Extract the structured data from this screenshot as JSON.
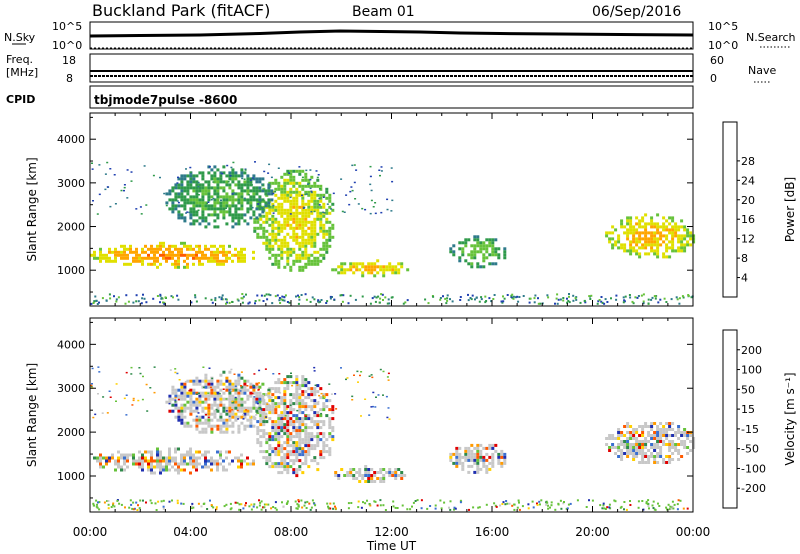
{
  "header": {
    "title": "Buckland Park (fitACF)",
    "beam": "Beam 01",
    "date": "06/Sep/2016"
  },
  "summary": {
    "nsky_label": "N.Sky",
    "nsky_ticks": [
      "10^5",
      "10^0"
    ],
    "nsearch_label": "N.Search",
    "nsearch_ticks": [
      "10^5",
      "10^0"
    ],
    "freq_label_line1": "Freq.",
    "freq_label_line2": "[MHz]",
    "freq_ticks": [
      "18",
      "8"
    ],
    "nave_label": "Nave",
    "nave_ticks": [
      "60",
      "0"
    ],
    "cpid_label": "CPID",
    "cpid_text": "tbjmode7pulse  -8600"
  },
  "chart_data": [
    {
      "type": "heatmap",
      "name": "power",
      "ylabel": "Slant Range [km]",
      "yticks": [
        1000,
        2000,
        3000,
        4000
      ],
      "ylim": [
        180,
        4600
      ],
      "xlim": [
        0,
        24
      ],
      "colorbar": {
        "label": "Power [dB]",
        "ticks": [
          "4",
          "8",
          "12",
          "16",
          "20",
          "24",
          "28"
        ],
        "colors": [
          "#0000e0",
          "#1f3fb0",
          "#2e7a8a",
          "#2f9a4a",
          "#66c23a",
          "#e0e000",
          "#ffa500",
          "#ff5a00",
          "#e00000"
        ]
      },
      "features": [
        {
          "x": [
            0.0,
            6.5
          ],
          "y": [
            1100,
            1650
          ],
          "level": 22
        },
        {
          "x": [
            6.5,
            9.7
          ],
          "y": [
            1000,
            3300
          ],
          "level": 18
        },
        {
          "x": [
            3.0,
            7.2
          ],
          "y": [
            2000,
            3400
          ],
          "level": 12
        },
        {
          "x": [
            9.6,
            12.7
          ],
          "y": [
            900,
            1250
          ],
          "level": 20
        },
        {
          "x": [
            14.3,
            16.5
          ],
          "y": [
            1100,
            1800
          ],
          "level": 13
        },
        {
          "x": [
            20.5,
            24.0
          ],
          "y": [
            1300,
            2300
          ],
          "level": 20
        }
      ]
    },
    {
      "type": "heatmap",
      "name": "velocity",
      "ylabel": "Slant Range [km]",
      "yticks": [
        1000,
        2000,
        3000,
        4000
      ],
      "ylim": [
        180,
        4600
      ],
      "xlim": [
        0,
        24
      ],
      "xticks": [
        "00:00",
        "04:00",
        "08:00",
        "12:00",
        "16:00",
        "20:00",
        "00:00"
      ],
      "xlabel": "Time UT",
      "colorbar": {
        "label": "Velocity [m s⁻¹]",
        "ticks": [
          "200",
          "100",
          "50",
          "15",
          "-15",
          "-50",
          "-100",
          "-200"
        ],
        "colors": [
          "#1f2fb0",
          "#3a6fd0",
          "#2f8a4a",
          "#66c23a",
          "#c8c8c8",
          "#ffd000",
          "#ff9a00",
          "#ff5a00",
          "#e00000"
        ]
      },
      "features": [
        {
          "x": [
            0.0,
            6.5
          ],
          "y": [
            1100,
            1650
          ],
          "level": 0
        },
        {
          "x": [
            6.5,
            9.7
          ],
          "y": [
            1000,
            3300
          ],
          "level": 0
        },
        {
          "x": [
            3.0,
            7.2
          ],
          "y": [
            2000,
            3400
          ],
          "level": 0
        },
        {
          "x": [
            9.6,
            12.7
          ],
          "y": [
            900,
            1250
          ],
          "level": 0
        },
        {
          "x": [
            14.3,
            16.5
          ],
          "y": [
            1100,
            1800
          ],
          "level": 0
        },
        {
          "x": [
            20.5,
            24.0
          ],
          "y": [
            1300,
            2300
          ],
          "level": 0
        }
      ]
    }
  ]
}
